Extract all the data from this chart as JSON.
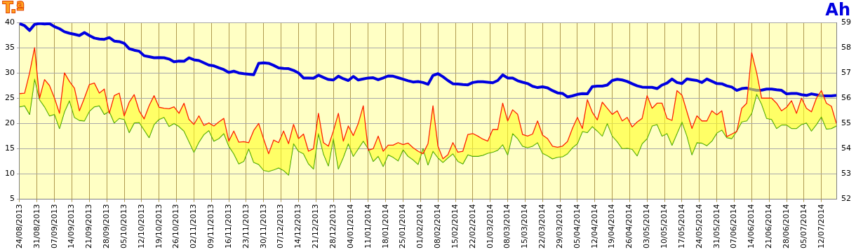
{
  "chart_data": {
    "type": "line",
    "ylabel": "T.ª",
    "y2label": "Ah",
    "grid": true,
    "x": [
      "2013-08-24",
      "2013-08-26",
      "2013-08-28",
      "2013-08-30",
      "2013-09-01",
      "2013-09-03",
      "2013-09-05",
      "2013-09-07",
      "2013-09-09",
      "2013-09-11",
      "2013-09-13",
      "2013-09-15",
      "2013-09-17",
      "2013-09-19",
      "2013-09-21",
      "2013-09-23",
      "2013-09-25",
      "2013-09-27",
      "2013-09-29",
      "2013-10-01",
      "2013-10-03",
      "2013-10-05",
      "2013-10-07",
      "2013-10-09",
      "2013-10-11",
      "2013-10-13",
      "2013-10-15",
      "2013-10-17",
      "2013-10-19",
      "2013-10-21",
      "2013-10-23",
      "2013-10-25",
      "2013-10-27",
      "2013-10-29",
      "2013-10-31",
      "2013-11-02",
      "2013-11-04",
      "2013-11-06",
      "2013-11-08",
      "2013-11-10",
      "2013-11-12",
      "2013-11-14",
      "2013-11-16",
      "2013-11-18",
      "2013-11-20",
      "2013-11-22",
      "2013-11-24",
      "2013-11-26",
      "2013-11-28",
      "2013-11-30",
      "2013-12-02",
      "2013-12-04",
      "2013-12-06",
      "2013-12-08",
      "2013-12-10",
      "2013-12-12",
      "2013-12-14",
      "2013-12-16",
      "2013-12-18",
      "2013-12-20",
      "2013-12-22",
      "2013-12-24",
      "2013-12-26",
      "2013-12-28",
      "2013-12-30",
      "2014-01-01",
      "2014-01-03",
      "2014-01-05",
      "2014-01-07",
      "2014-01-09",
      "2014-01-11",
      "2014-01-13",
      "2014-01-15",
      "2014-01-17",
      "2014-01-19",
      "2014-01-21",
      "2014-01-23",
      "2014-01-25",
      "2014-01-27",
      "2014-01-29",
      "2014-01-31",
      "2014-02-02",
      "2014-02-04",
      "2014-02-06",
      "2014-02-08",
      "2014-02-10",
      "2014-02-12",
      "2014-02-14",
      "2014-02-16",
      "2014-02-18",
      "2014-02-20",
      "2014-02-22",
      "2014-02-24",
      "2014-02-26",
      "2014-02-28",
      "2014-03-02",
      "2014-03-04",
      "2014-03-06",
      "2014-03-08",
      "2014-03-10",
      "2014-03-12",
      "2014-03-14",
      "2014-03-16",
      "2014-03-18",
      "2014-03-20",
      "2014-03-22",
      "2014-03-24",
      "2014-03-26",
      "2014-03-28",
      "2014-03-30",
      "2014-04-01",
      "2014-04-03",
      "2014-04-05",
      "2014-04-07",
      "2014-04-09",
      "2014-04-11",
      "2014-04-13",
      "2014-04-15",
      "2014-04-17",
      "2014-04-19",
      "2014-04-21",
      "2014-04-23",
      "2014-04-25",
      "2014-04-27",
      "2014-04-29",
      "2014-05-01",
      "2014-05-03",
      "2014-05-05",
      "2014-05-07",
      "2014-05-09",
      "2014-05-11",
      "2014-05-13",
      "2014-05-15",
      "2014-05-17",
      "2014-05-19",
      "2014-05-21",
      "2014-05-23",
      "2014-05-25",
      "2014-05-27",
      "2014-05-29",
      "2014-05-31",
      "2014-06-02",
      "2014-06-04",
      "2014-06-06",
      "2014-06-08",
      "2014-06-10",
      "2014-06-12",
      "2014-06-14",
      "2014-06-16",
      "2014-06-18",
      "2014-06-20",
      "2014-06-22",
      "2014-06-24",
      "2014-06-26",
      "2014-06-28",
      "2014-06-30",
      "2014-07-02",
      "2014-07-04",
      "2014-07-06",
      "2014-07-08",
      "2014-07-10",
      "2014-07-12",
      "2014-07-14",
      "2014-07-16",
      "2014-07-18"
    ],
    "series": [
      {
        "type": "area",
        "color": "#ff2000",
        "values": [
          25.9,
          26,
          30,
          35,
          25,
          28.7,
          27.5,
          25,
          22,
          30,
          28.3,
          27,
          22.5,
          25,
          27.7,
          28,
          26,
          26.8,
          22,
          25.5,
          26,
          21.5,
          24.2,
          25.7,
          22.5,
          20.9,
          23.5,
          25.5,
          23.2,
          23,
          22.9,
          23.3,
          22,
          24,
          20.8,
          19.8,
          21.5,
          19.6,
          20.1,
          19.5,
          20.3,
          21,
          16.5,
          18.5,
          16.3,
          16.4,
          16.2,
          18.6,
          20,
          16.9,
          14,
          16.7,
          16.2,
          18.5,
          16,
          19.8,
          17,
          17.9,
          14.5,
          15,
          22,
          16.2,
          15.5,
          18.5,
          22,
          16.5,
          19.5,
          17.6,
          20,
          23.5,
          14.7,
          15,
          17.5,
          14.5,
          15.7,
          15.7,
          16.2,
          15.8,
          16.1,
          15.2,
          14.5,
          14,
          16,
          23.5,
          15.5,
          13,
          13.8,
          16.2,
          14.3,
          14.5,
          17.8,
          18,
          17.5,
          16.9,
          16.5,
          18.8,
          18.8,
          24,
          20.5,
          22.7,
          21.8,
          17.8,
          17.5,
          17.9,
          20.5,
          17.7,
          17,
          15.5,
          15.3,
          15.5,
          16.4,
          19,
          21.2,
          19,
          24.7,
          22.2,
          20.7,
          24.2,
          23,
          21.8,
          22.5,
          20.5,
          21.2,
          19.3,
          20.3,
          21,
          25.5,
          23,
          24,
          24,
          21,
          20.6,
          26.5,
          25.6,
          22.3,
          19,
          21.5,
          20.5,
          20.5,
          22.5,
          21.7,
          22.5,
          17.4,
          17.9,
          18.4,
          23,
          24,
          34,
          30,
          25,
          25,
          25,
          24,
          22.5,
          23.2,
          24.5,
          22,
          25,
          23,
          22.3,
          25,
          26.5,
          24,
          23.4,
          20
        ]
      },
      {
        "color": "#2e9a00",
        "values": [
          23.3,
          23.5,
          21.8,
          28.8,
          24.7,
          23.3,
          21.5,
          21.8,
          19,
          22.3,
          24.5,
          21.2,
          20.6,
          20.5,
          22.4,
          23.3,
          23.5,
          21.8,
          22.4,
          20.1,
          21,
          20.8,
          18.2,
          20.1,
          20.2,
          18.7,
          17.2,
          19.8,
          20.8,
          21.2,
          19.4,
          20,
          19.4,
          18.5,
          16.4,
          14.3,
          16.3,
          17.8,
          18.6,
          16.5,
          17,
          18,
          15.5,
          14,
          12,
          12.5,
          15,
          12.3,
          11.9,
          10.7,
          10.5,
          10.8,
          11.2,
          10.7,
          9.8,
          16,
          14.5,
          14,
          12,
          11,
          18,
          14,
          11.6,
          17,
          11,
          13.3,
          16,
          13.5,
          15,
          16.5,
          15,
          12.5,
          13.5,
          11.5,
          13.8,
          13.3,
          12.6,
          14.8,
          13.5,
          12.8,
          11.9,
          15,
          11.8,
          14.5,
          13.2,
          12.3,
          13.2,
          14,
          12.5,
          12,
          13.8,
          13.5,
          13.5,
          13.7,
          14.1,
          14.3,
          14.7,
          15.8,
          13.8,
          18,
          17,
          15.5,
          15.2,
          15.5,
          16.2,
          14.1,
          13.6,
          13,
          13.3,
          13.4,
          14,
          15.2,
          16,
          18.4,
          18.2,
          19.4,
          18.5,
          17.5,
          20,
          17.5,
          16.4,
          15,
          15.1,
          14.9,
          13.6,
          16,
          17,
          19.5,
          19.8,
          17.5,
          18,
          15.7,
          18,
          20.3,
          17.5,
          13.8,
          16.2,
          16.1,
          15.6,
          16.5,
          18.1,
          18.7,
          17.2,
          17,
          18.5,
          20.3,
          20.5,
          22,
          25.8,
          23.8,
          21,
          20.8,
          19,
          19.7,
          19.7,
          19,
          19,
          19.8,
          20.1,
          18.5,
          19.8,
          21.3,
          18.9,
          19,
          19.5
        ]
      },
      {
        "axis": "y2",
        "color": "#0000e0",
        "values": [
          58.95,
          58.87,
          58.68,
          58.92,
          58.96,
          58.94,
          58.95,
          58.83,
          58.75,
          58.63,
          58.57,
          58.53,
          58.48,
          58.6,
          58.48,
          58.38,
          58.34,
          58.33,
          58.4,
          58.26,
          58.24,
          58.17,
          57.96,
          57.9,
          57.86,
          57.68,
          57.64,
          57.6,
          57.61,
          57.6,
          57.55,
          57.44,
          57.47,
          57.46,
          57.6,
          57.52,
          57.49,
          57.4,
          57.31,
          57.28,
          57.2,
          57.13,
          57.02,
          57.07,
          57,
          56.97,
          56.95,
          56.93,
          57.38,
          57.4,
          57.38,
          57.3,
          57.2,
          57.18,
          57.17,
          57.1,
          57,
          56.8,
          56.8,
          56.79,
          56.91,
          56.82,
          56.74,
          56.72,
          56.87,
          56.77,
          56.7,
          56.86,
          56.72,
          56.76,
          56.8,
          56.81,
          56.73,
          56.8,
          56.88,
          56.87,
          56.81,
          56.75,
          56.69,
          56.64,
          56.66,
          56.62,
          56.55,
          56.9,
          56.97,
          56.85,
          56.7,
          56.57,
          56.56,
          56.54,
          56.53,
          56.62,
          56.65,
          56.65,
          56.63,
          56.61,
          56.7,
          56.92,
          56.8,
          56.8,
          56.69,
          56.63,
          56.58,
          56.47,
          56.42,
          56.45,
          56.41,
          56.3,
          56.21,
          56.19,
          56.05,
          56.09,
          56.15,
          56.18,
          56.17,
          56.46,
          56.48,
          56.48,
          56.52,
          56.7,
          56.75,
          56.72,
          56.66,
          56.57,
          56.49,
          56.44,
          56.43,
          56.43,
          56.38,
          56.52,
          56.6,
          56.76,
          56.62,
          56.58,
          56.76,
          56.73,
          56.7,
          56.62,
          56.76,
          56.67,
          56.58,
          56.57,
          56.49,
          56.44,
          56.31,
          56.38,
          56.4,
          56.35,
          56.31,
          56.32,
          56.36,
          56.36,
          56.33,
          56.31,
          56.17,
          56.19,
          56.19,
          56.14,
          56.11,
          56.17,
          56.13,
          56.09,
          56.09,
          56.09,
          56.11
        ]
      }
    ],
    "xlim": [
      "2013-08-24",
      "2014-07-18"
    ],
    "xticks": [
      {
        "value": "2013-08-24",
        "label": "24/08/2013"
      },
      {
        "value": "2013-08-31",
        "label": "31/08/2013"
      },
      {
        "value": "2013-09-07",
        "label": "07/09/2013"
      },
      {
        "value": "2013-09-14",
        "label": "14/09/2013"
      },
      {
        "value": "2013-09-21",
        "label": "21/09/2013"
      },
      {
        "value": "2013-09-28",
        "label": "28/09/2013"
      },
      {
        "value": "2013-10-05",
        "label": "05/10/2013"
      },
      {
        "value": "2013-10-12",
        "label": "12/10/2013"
      },
      {
        "value": "2013-10-19",
        "label": "19/10/2013"
      },
      {
        "value": "2013-10-26",
        "label": "26/10/2013"
      },
      {
        "value": "2013-11-02",
        "label": "02/11/2013"
      },
      {
        "value": "2013-11-09",
        "label": "09/11/2013"
      },
      {
        "value": "2013-11-16",
        "label": "16/11/2013"
      },
      {
        "value": "2013-11-23",
        "label": "23/11/2013"
      },
      {
        "value": "2013-11-30",
        "label": "30/11/2013"
      },
      {
        "value": "2013-12-07",
        "label": "07/12/2013"
      },
      {
        "value": "2013-12-14",
        "label": "14/12/2013"
      },
      {
        "value": "2013-12-21",
        "label": "21/12/2013"
      },
      {
        "value": "2013-12-28",
        "label": "28/12/2013"
      },
      {
        "value": "2014-01-04",
        "label": "04/01/2014"
      },
      {
        "value": "2014-01-11",
        "label": "11/01/2014"
      },
      {
        "value": "2014-01-18",
        "label": "18/01/2014"
      },
      {
        "value": "2014-01-25",
        "label": "25/01/2014"
      },
      {
        "value": "2014-02-01",
        "label": "01/02/2014"
      },
      {
        "value": "2014-02-08",
        "label": "08/02/2014"
      },
      {
        "value": "2014-02-15",
        "label": "15/02/2014"
      },
      {
        "value": "2014-02-22",
        "label": "22/02/2014"
      },
      {
        "value": "2014-03-01",
        "label": "01/03/2014"
      },
      {
        "value": "2014-03-08",
        "label": "08/03/2014"
      },
      {
        "value": "2014-03-15",
        "label": "15/03/2014"
      },
      {
        "value": "2014-03-22",
        "label": "22/03/2014"
      },
      {
        "value": "2014-03-29",
        "label": "29/03/2014"
      },
      {
        "value": "2014-04-05",
        "label": "05/04/2014"
      },
      {
        "value": "2014-04-12",
        "label": "12/04/2014"
      },
      {
        "value": "2014-04-19",
        "label": "19/04/2014"
      },
      {
        "value": "2014-04-26",
        "label": "26/04/2014"
      },
      {
        "value": "2014-05-03",
        "label": "03/05/2014"
      },
      {
        "value": "2014-05-10",
        "label": "10/05/2014"
      },
      {
        "value": "2014-05-17",
        "label": "17/05/2014"
      },
      {
        "value": "2014-05-24",
        "label": "24/05/2014"
      },
      {
        "value": "2014-05-31",
        "label": "31/05/2014"
      },
      {
        "value": "2014-06-07",
        "label": "07/06/2014"
      },
      {
        "value": "2014-06-14",
        "label": "14/06/2014"
      },
      {
        "value": "2014-06-21",
        "label": "21/06/2014"
      },
      {
        "value": "2014-06-28",
        "label": "28/06/2014"
      },
      {
        "value": "2014-07-05",
        "label": "05/07/2014"
      },
      {
        "value": "2014-07-12",
        "label": "12/07/2014"
      }
    ],
    "ylim": [
      5,
      40
    ],
    "yticks": [
      5,
      10,
      15,
      20,
      25,
      30,
      35,
      40
    ],
    "y2lim": [
      52,
      59
    ],
    "y2ticks": [
      52,
      53,
      54,
      55,
      56,
      57,
      58,
      59
    ]
  }
}
